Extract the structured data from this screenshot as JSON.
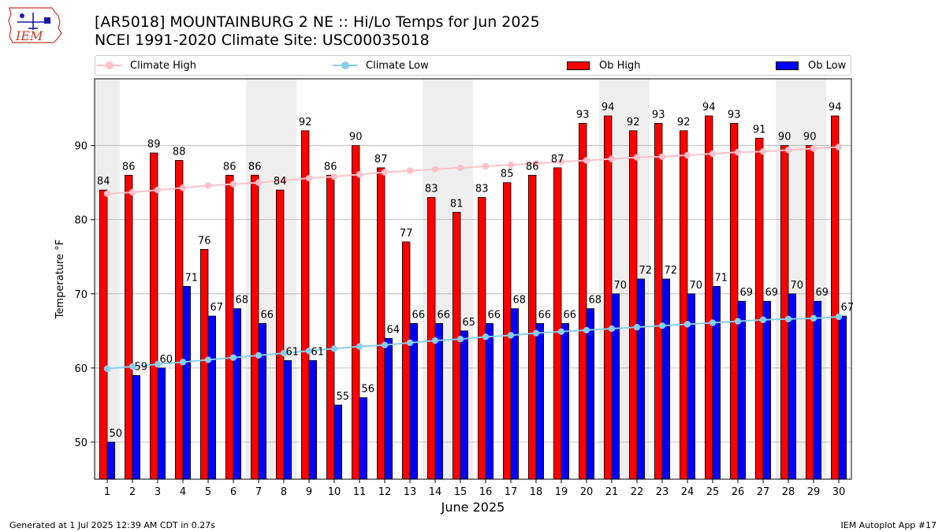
{
  "header": {
    "logo_text": "IEM",
    "title_line1": "[AR5018] MOUNTAINBURG 2 NE :: Hi/Lo Temps for Jun 2025",
    "title_line2": "NCEI 1991-2020 Climate Site: USC00035018"
  },
  "footer": {
    "left": "Generated at 1 Jul 2025 12:39 AM CDT in 0.27s",
    "right": "IEM Autoplot App #17"
  },
  "chart_data": {
    "type": "bar",
    "xlabel": "June 2025",
    "ylabel": "Temperature °F",
    "ylim": [
      45,
      99
    ],
    "yticks": [
      50,
      60,
      70,
      80,
      90
    ],
    "grid": "horizontal",
    "legend_placement": "top",
    "weekend_shading": [
      1,
      7,
      8,
      14,
      15,
      21,
      22,
      28,
      29
    ],
    "categories": [
      1,
      2,
      3,
      4,
      5,
      6,
      7,
      8,
      9,
      10,
      11,
      12,
      13,
      14,
      15,
      16,
      17,
      18,
      19,
      20,
      21,
      22,
      23,
      24,
      25,
      26,
      27,
      28,
      29,
      30
    ],
    "series": [
      {
        "name": "Climate High",
        "kind": "line",
        "color": "#ffc0cb",
        "values": [
          83.5,
          83.7,
          84.0,
          84.3,
          84.6,
          84.8,
          85.0,
          85.3,
          85.6,
          85.8,
          86.1,
          86.4,
          86.6,
          86.8,
          87.0,
          87.2,
          87.4,
          87.6,
          87.8,
          88.0,
          88.2,
          88.4,
          88.5,
          88.7,
          88.9,
          89.1,
          89.2,
          89.4,
          89.6,
          89.8
        ]
      },
      {
        "name": "Climate Low",
        "kind": "line",
        "color": "#87ceeb",
        "values": [
          59.9,
          60.2,
          60.5,
          60.8,
          61.1,
          61.4,
          61.7,
          62.0,
          62.3,
          62.6,
          62.9,
          63.1,
          63.4,
          63.7,
          63.9,
          64.2,
          64.4,
          64.7,
          64.9,
          65.1,
          65.3,
          65.5,
          65.7,
          65.9,
          66.1,
          66.3,
          66.5,
          66.6,
          66.7,
          66.9
        ]
      },
      {
        "name": "Ob High",
        "kind": "bar",
        "color": "#ff0000",
        "values": [
          84,
          86,
          89,
          88,
          76,
          86,
          86,
          84,
          92,
          86,
          90,
          87,
          77,
          83,
          81,
          83,
          85,
          86,
          87,
          93,
          94,
          92,
          93,
          92,
          94,
          93,
          91,
          90,
          90,
          94
        ]
      },
      {
        "name": "Ob Low",
        "kind": "bar",
        "color": "#0000ff",
        "values": [
          50,
          59,
          60,
          71,
          67,
          68,
          66,
          61,
          61,
          55,
          56,
          64,
          66,
          66,
          65,
          66,
          68,
          66,
          66,
          68,
          70,
          72,
          72,
          70,
          71,
          69,
          69,
          70,
          69,
          67
        ]
      }
    ]
  }
}
